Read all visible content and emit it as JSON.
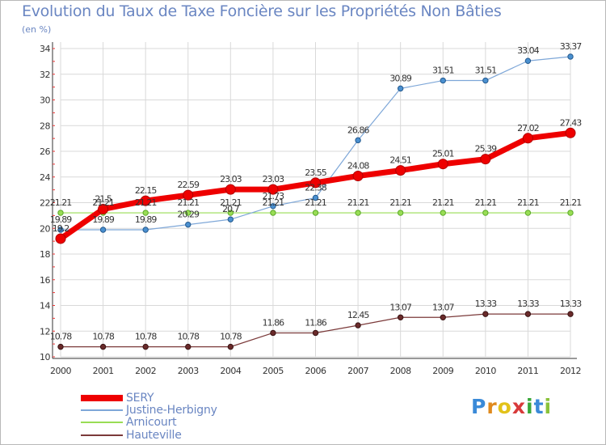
{
  "header": {
    "title": "Evolution du Taux de Taxe Foncière sur les Propriétés Non Bâties",
    "unit": "(en %)"
  },
  "chart_data": {
    "type": "line",
    "title": "Evolution du Taux de Taxe Foncière sur les Propriétés Non Bâties",
    "ylabel": "(en %)",
    "xlabel": "",
    "x": [
      "2000",
      "2001",
      "2002",
      "2003",
      "2004",
      "2005",
      "2006",
      "2007",
      "2008",
      "2009",
      "2010",
      "2011",
      "2012"
    ],
    "ylim": [
      10,
      34
    ],
    "yticks": [
      "10",
      "12",
      "14",
      "16",
      "18",
      "20",
      "22",
      "24",
      "26",
      "28",
      "30",
      "32",
      "34"
    ],
    "grid": true,
    "series": [
      {
        "name": "SERY",
        "color": "#ee0000",
        "values": [
          19.2,
          21.5,
          22.15,
          22.59,
          23.03,
          23.03,
          23.55,
          24.08,
          24.51,
          25.01,
          25.39,
          27.02,
          27.43
        ],
        "labels": [
          "19.2",
          "21.5",
          "22.15",
          "22.59",
          "23.03",
          "23.03",
          "23.55",
          "24.08",
          "24.51",
          "25.01",
          "25.39",
          "27.02",
          "27.43"
        ]
      },
      {
        "name": "Justine-Herbigny",
        "color": "#7ea7d8",
        "values": [
          19.89,
          19.89,
          19.89,
          20.29,
          20.7,
          21.73,
          22.38,
          26.86,
          30.89,
          31.51,
          31.51,
          33.04,
          33.37
        ],
        "labels": [
          "19.89",
          "19.89",
          "19.89",
          "20.29",
          "20.7",
          "21.73",
          "22.38",
          "26.86",
          "30.89",
          "31.51",
          "31.51",
          "33.04",
          "33.37"
        ]
      },
      {
        "name": "Arnicourt",
        "color": "#99dd55",
        "values": [
          21.21,
          21.21,
          21.21,
          21.21,
          21.21,
          21.21,
          21.21,
          21.21,
          21.21,
          21.21,
          21.21,
          21.21,
          21.21
        ],
        "labels": [
          "21.21",
          "21.21",
          "21.21",
          "21.21",
          "21.21",
          "21.21",
          "21.21",
          "21.21",
          "21.21",
          "21.21",
          "21.21",
          "21.21",
          "21.21"
        ]
      },
      {
        "name": "Hauteville",
        "color": "#7b3a3a",
        "values": [
          10.78,
          10.78,
          10.78,
          10.78,
          10.78,
          11.86,
          11.86,
          12.45,
          13.07,
          13.07,
          13.33,
          13.33,
          13.33
        ],
        "labels": [
          "10.78",
          "10.78",
          "10.78",
          "10.78",
          "10.78",
          "11.86",
          "11.86",
          "12.45",
          "13.07",
          "13.07",
          "13.33",
          "13.33",
          "13.33"
        ]
      }
    ]
  },
  "legend": {
    "items": [
      {
        "label": "SERY",
        "color": "#ee0000"
      },
      {
        "label": "Justine-Herbigny",
        "color": "#7ea7d8"
      },
      {
        "label": "Arnicourt",
        "color": "#99dd55"
      },
      {
        "label": "Hauteville",
        "color": "#7b3a3a"
      }
    ]
  },
  "logo": {
    "letters": [
      "P",
      "r",
      "o",
      "x",
      "i",
      "t",
      "i"
    ],
    "colors": [
      "#3a8ad8",
      "#e08a1e",
      "#e2c21a",
      "#d83a3a",
      "#3aa83a",
      "#3a8ad8",
      "#8ac23a"
    ]
  }
}
